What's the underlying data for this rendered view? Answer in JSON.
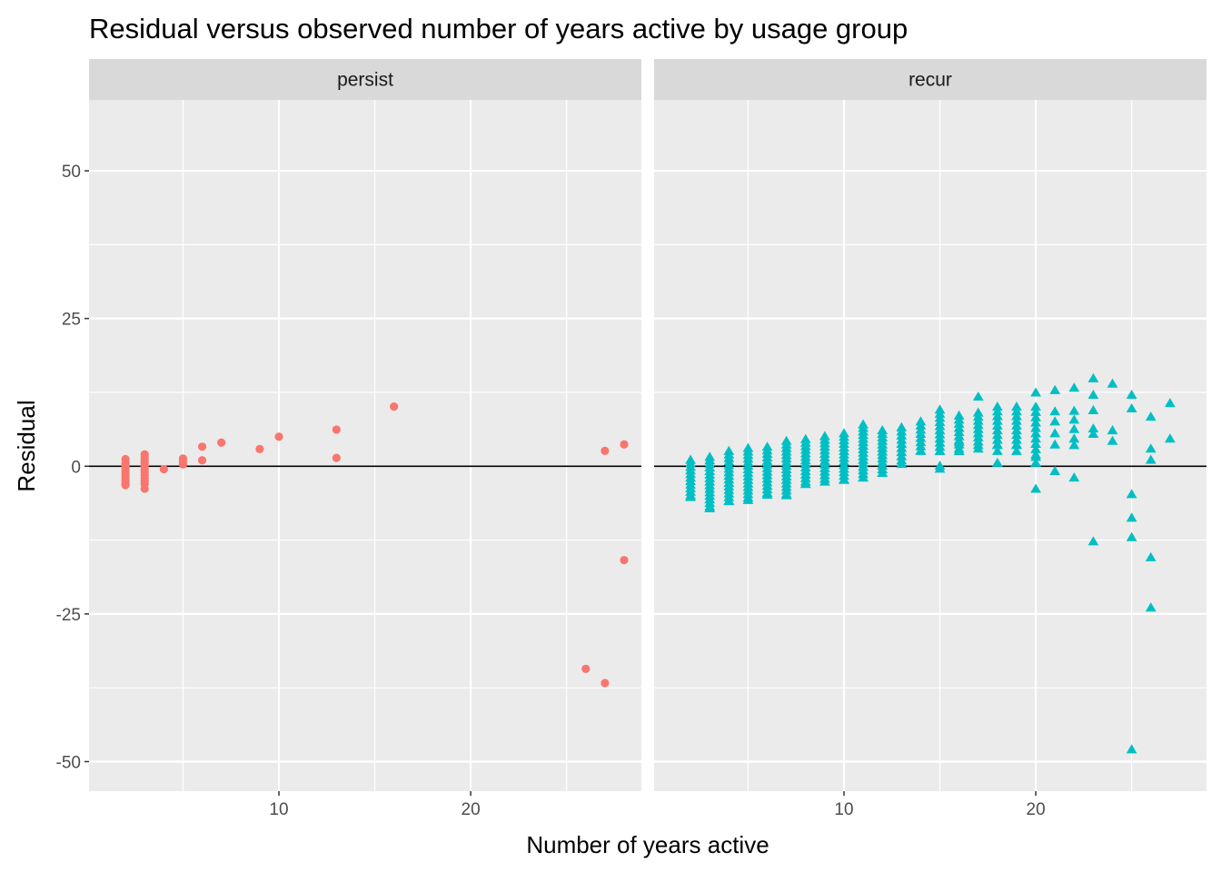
{
  "chart_data": {
    "type": "scatter",
    "title": "Residual versus observed number of years active by usage group",
    "xlabel": "Number of years active",
    "ylabel": "Residual",
    "xlim": [
      0.1,
      28.9
    ],
    "ylim": [
      -55,
      62
    ],
    "x_ticks": [
      10,
      20
    ],
    "y_ticks": [
      -50,
      -25,
      0,
      25,
      50
    ],
    "y_tick_labels": [
      "-50",
      "-25",
      "0",
      "25",
      "50"
    ],
    "grid": true,
    "reference_line": {
      "y": 0,
      "color": "#000000"
    },
    "legend": "none",
    "panels": [
      {
        "name": "persist",
        "color": "#F8766D",
        "marker": "circle",
        "points": [
          {
            "x": 2,
            "y": 1.2
          },
          {
            "x": 2,
            "y": 0.5
          },
          {
            "x": 2,
            "y": 0
          },
          {
            "x": 2,
            "y": -0.5
          },
          {
            "x": 2,
            "y": -1
          },
          {
            "x": 2,
            "y": -1.5
          },
          {
            "x": 2,
            "y": -2
          },
          {
            "x": 2,
            "y": -2.5
          },
          {
            "x": 2,
            "y": -3
          },
          {
            "x": 2,
            "y": -3.2
          },
          {
            "x": 3,
            "y": 2
          },
          {
            "x": 3,
            "y": 1.5
          },
          {
            "x": 3,
            "y": 1
          },
          {
            "x": 3,
            "y": 0.5
          },
          {
            "x": 3,
            "y": 0
          },
          {
            "x": 3,
            "y": -0.5
          },
          {
            "x": 3,
            "y": -1
          },
          {
            "x": 3,
            "y": -1.5
          },
          {
            "x": 3,
            "y": -2
          },
          {
            "x": 3,
            "y": -2.5
          },
          {
            "x": 3,
            "y": -3
          },
          {
            "x": 3,
            "y": -3.8
          },
          {
            "x": 4,
            "y": -0.5
          },
          {
            "x": 5,
            "y": 1.3
          },
          {
            "x": 5,
            "y": 0.8
          },
          {
            "x": 5,
            "y": 0.3
          },
          {
            "x": 6,
            "y": 3.3
          },
          {
            "x": 6,
            "y": 1
          },
          {
            "x": 7,
            "y": 4
          },
          {
            "x": 9,
            "y": 2.9
          },
          {
            "x": 10,
            "y": 5
          },
          {
            "x": 13,
            "y": 6.2
          },
          {
            "x": 13,
            "y": 1.4
          },
          {
            "x": 16,
            "y": 10.1
          },
          {
            "x": 26,
            "y": -34.3
          },
          {
            "x": 27,
            "y": 2.6
          },
          {
            "x": 27,
            "y": -36.7
          },
          {
            "x": 28,
            "y": 3.7
          },
          {
            "x": 28,
            "y": -15.9
          }
        ]
      },
      {
        "name": "recur",
        "color": "#00BFC4",
        "marker": "triangle",
        "columns": [
          {
            "x": 2,
            "ymin": -5.3,
            "ymax": 1,
            "step": 0.6
          },
          {
            "x": 3,
            "ymin": -7.2,
            "ymax": 1.5,
            "step": 0.6
          },
          {
            "x": 4,
            "ymin": -6,
            "ymax": 2.5,
            "step": 0.6
          },
          {
            "x": 5,
            "ymin": -5.8,
            "ymax": 3,
            "step": 0.6
          },
          {
            "x": 6,
            "ymin": -4.9,
            "ymax": 3.2,
            "step": 0.6
          },
          {
            "x": 7,
            "ymin": -5,
            "ymax": 4.2,
            "step": 0.6
          },
          {
            "x": 8,
            "ymin": -3.1,
            "ymax": 4.5,
            "step": 0.6
          },
          {
            "x": 9,
            "ymin": -2.7,
            "ymax": 5,
            "step": 0.6
          },
          {
            "x": 10,
            "ymin": -2.4,
            "ymax": 5.5,
            "step": 0.6
          },
          {
            "x": 11,
            "ymin": -2,
            "ymax": 7,
            "step": 0.6
          },
          {
            "x": 12,
            "ymin": -1.2,
            "ymax": 6,
            "step": 0.6
          },
          {
            "x": 13,
            "ymin": 0.3,
            "ymax": 6.5,
            "step": 0.7
          },
          {
            "x": 14,
            "ymin": 2.5,
            "ymax": 7.5,
            "step": 0.7
          },
          {
            "x": 15,
            "ymin": 2.5,
            "ymax": 9.5,
            "step": 0.7
          },
          {
            "x": 16,
            "ymin": 2.5,
            "ymax": 8.5,
            "step": 0.7
          },
          {
            "x": 17,
            "ymin": 3.5,
            "ymax": 9,
            "step": 0.7
          },
          {
            "x": 18,
            "ymin": 3.5,
            "ymax": 10,
            "step": 0.8
          },
          {
            "x": 19,
            "ymin": 3.5,
            "ymax": 10,
            "step": 0.8
          },
          {
            "x": 20,
            "ymin": 1.5,
            "ymax": 10,
            "step": 0.9
          }
        ],
        "points": [
          {
            "x": 15,
            "y": 0
          },
          {
            "x": 15,
            "y": -0.5
          },
          {
            "x": 16,
            "y": 2.5
          },
          {
            "x": 16,
            "y": 4
          },
          {
            "x": 17,
            "y": 2.9
          },
          {
            "x": 17,
            "y": 11.7
          },
          {
            "x": 18,
            "y": 0.5
          },
          {
            "x": 18,
            "y": 2.5
          },
          {
            "x": 19,
            "y": 2.5
          },
          {
            "x": 20,
            "y": 12.4
          },
          {
            "x": 20,
            "y": 0.5
          },
          {
            "x": 20,
            "y": -3.9
          },
          {
            "x": 21,
            "y": 12.8
          },
          {
            "x": 21,
            "y": 9.2
          },
          {
            "x": 21,
            "y": 7.5
          },
          {
            "x": 21,
            "y": 5.5
          },
          {
            "x": 21,
            "y": 3.6
          },
          {
            "x": 21,
            "y": -0.9
          },
          {
            "x": 22,
            "y": 13.2
          },
          {
            "x": 22,
            "y": 9.3
          },
          {
            "x": 22,
            "y": 7.8
          },
          {
            "x": 22,
            "y": 6.2
          },
          {
            "x": 22,
            "y": 4.6
          },
          {
            "x": 22,
            "y": 3.5
          },
          {
            "x": 22,
            "y": -2
          },
          {
            "x": 23,
            "y": 14.8
          },
          {
            "x": 23,
            "y": 12
          },
          {
            "x": 23,
            "y": 9.4
          },
          {
            "x": 23,
            "y": 6.3
          },
          {
            "x": 23,
            "y": 5.4
          },
          {
            "x": 23,
            "y": -12.8
          },
          {
            "x": 24,
            "y": 13.9
          },
          {
            "x": 24,
            "y": 6
          },
          {
            "x": 24,
            "y": 4.2
          },
          {
            "x": 25,
            "y": 12
          },
          {
            "x": 25,
            "y": 9.7
          },
          {
            "x": 25,
            "y": -4.8
          },
          {
            "x": 25,
            "y": -8.8
          },
          {
            "x": 25,
            "y": -12.1
          },
          {
            "x": 25,
            "y": -48
          },
          {
            "x": 26,
            "y": 8.3
          },
          {
            "x": 26,
            "y": 2.9
          },
          {
            "x": 26,
            "y": 1
          },
          {
            "x": 26,
            "y": -15.5
          },
          {
            "x": 26,
            "y": -24
          },
          {
            "x": 27,
            "y": 10.6
          },
          {
            "x": 27,
            "y": 4.6
          }
        ]
      }
    ]
  }
}
